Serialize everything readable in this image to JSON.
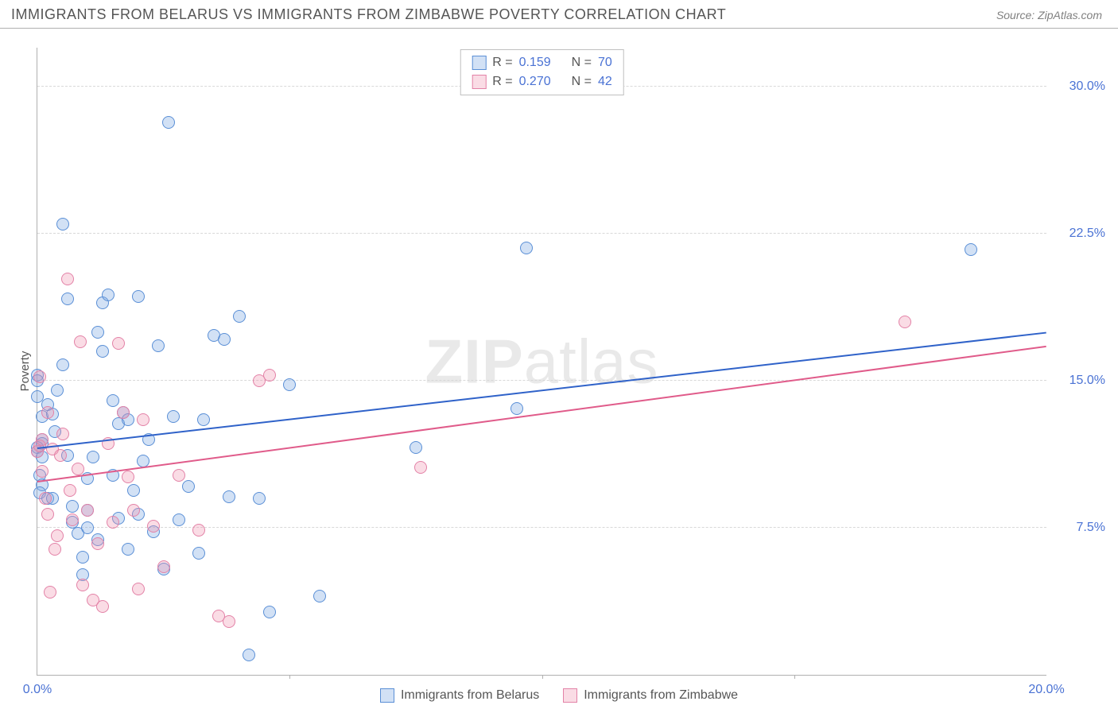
{
  "header": {
    "title": "IMMIGRANTS FROM BELARUS VS IMMIGRANTS FROM ZIMBABWE POVERTY CORRELATION CHART",
    "source": "Source: ZipAtlas.com"
  },
  "chart": {
    "type": "scatter",
    "ylabel": "Poverty",
    "watermark_bold": "ZIP",
    "watermark_rest": "atlas",
    "xlim": [
      0,
      20
    ],
    "ylim": [
      0,
      32
    ],
    "xticks": [
      {
        "value": 0,
        "label": "0.0%"
      },
      {
        "value": 20,
        "label": "20.0%"
      }
    ],
    "xtick_marks": [
      5,
      10,
      15
    ],
    "yticks": [
      {
        "value": 7.5,
        "label": "7.5%"
      },
      {
        "value": 15.0,
        "label": "15.0%"
      },
      {
        "value": 22.5,
        "label": "22.5%"
      },
      {
        "value": 30.0,
        "label": "30.0%"
      }
    ],
    "grid_color": "#d8d8d8",
    "axis_color": "#b0b0b0",
    "background_color": "#ffffff",
    "tick_label_color": "#4a72d4",
    "marker_radius": 8,
    "marker_border_width": 1.2,
    "series": [
      {
        "name": "Immigrants from Belarus",
        "fill": "rgba(126,169,226,0.35)",
        "stroke": "#5a8fd6",
        "line_color": "#2f62c9",
        "r_value": "0.159",
        "n_value": "70",
        "regression": {
          "x1": 0,
          "y1": 11.5,
          "x2": 20,
          "y2": 17.4
        },
        "points": [
          [
            0.0,
            15.3
          ],
          [
            0.0,
            15.0
          ],
          [
            0.0,
            14.2
          ],
          [
            0.1,
            13.2
          ],
          [
            0.1,
            12.0
          ],
          [
            0.1,
            11.8
          ],
          [
            0.0,
            11.6
          ],
          [
            0.0,
            11.4
          ],
          [
            0.1,
            11.1
          ],
          [
            0.05,
            10.2
          ],
          [
            0.1,
            9.7
          ],
          [
            0.05,
            9.3
          ],
          [
            0.2,
            9.0
          ],
          [
            0.3,
            9.0
          ],
          [
            0.2,
            13.8
          ],
          [
            0.3,
            13.3
          ],
          [
            0.35,
            12.4
          ],
          [
            0.4,
            14.5
          ],
          [
            0.5,
            15.8
          ],
          [
            0.5,
            23.0
          ],
          [
            0.6,
            19.2
          ],
          [
            0.6,
            11.2
          ],
          [
            0.7,
            8.6
          ],
          [
            0.7,
            7.8
          ],
          [
            0.8,
            7.2
          ],
          [
            0.9,
            5.1
          ],
          [
            0.9,
            6.0
          ],
          [
            1.0,
            7.5
          ],
          [
            1.0,
            8.4
          ],
          [
            1.0,
            10.0
          ],
          [
            1.1,
            11.1
          ],
          [
            1.2,
            17.5
          ],
          [
            1.2,
            6.9
          ],
          [
            1.3,
            19.0
          ],
          [
            1.3,
            16.5
          ],
          [
            1.4,
            19.4
          ],
          [
            1.5,
            14.0
          ],
          [
            1.5,
            10.2
          ],
          [
            1.6,
            12.8
          ],
          [
            1.6,
            8.0
          ],
          [
            1.7,
            13.4
          ],
          [
            1.8,
            13.0
          ],
          [
            1.8,
            6.4
          ],
          [
            1.9,
            9.4
          ],
          [
            2.0,
            19.3
          ],
          [
            2.0,
            8.2
          ],
          [
            2.1,
            10.9
          ],
          [
            2.2,
            12.0
          ],
          [
            2.3,
            7.3
          ],
          [
            2.4,
            16.8
          ],
          [
            2.5,
            5.4
          ],
          [
            2.6,
            28.2
          ],
          [
            2.7,
            13.2
          ],
          [
            2.8,
            7.9
          ],
          [
            3.0,
            9.6
          ],
          [
            3.2,
            6.2
          ],
          [
            3.3,
            13.0
          ],
          [
            3.5,
            17.3
          ],
          [
            3.7,
            17.1
          ],
          [
            3.8,
            9.1
          ],
          [
            4.0,
            18.3
          ],
          [
            4.2,
            1.0
          ],
          [
            4.4,
            9.0
          ],
          [
            4.6,
            3.2
          ],
          [
            5.0,
            14.8
          ],
          [
            5.6,
            4.0
          ],
          [
            7.5,
            11.6
          ],
          [
            9.5,
            13.6
          ],
          [
            18.5,
            21.7
          ],
          [
            9.7,
            21.8
          ]
        ]
      },
      {
        "name": "Immigrants from Zimbabwe",
        "fill": "rgba(238,145,175,0.32)",
        "stroke": "#e382a7",
        "line_color": "#e05b8a",
        "r_value": "0.270",
        "n_value": "42",
        "regression": {
          "x1": 0,
          "y1": 9.8,
          "x2": 20,
          "y2": 16.7
        },
        "points": [
          [
            0.0,
            11.4
          ],
          [
            0.05,
            11.7
          ],
          [
            0.05,
            15.2
          ],
          [
            0.1,
            12.0
          ],
          [
            0.1,
            10.4
          ],
          [
            0.15,
            9.0
          ],
          [
            0.2,
            8.2
          ],
          [
            0.2,
            13.4
          ],
          [
            0.25,
            4.2
          ],
          [
            0.3,
            11.5
          ],
          [
            0.35,
            6.4
          ],
          [
            0.4,
            7.1
          ],
          [
            0.45,
            11.2
          ],
          [
            0.5,
            12.3
          ],
          [
            0.6,
            20.2
          ],
          [
            0.65,
            9.4
          ],
          [
            0.7,
            7.9
          ],
          [
            0.8,
            10.5
          ],
          [
            0.85,
            17.0
          ],
          [
            0.9,
            4.6
          ],
          [
            1.0,
            8.4
          ],
          [
            1.1,
            3.8
          ],
          [
            1.2,
            6.7
          ],
          [
            1.3,
            3.5
          ],
          [
            1.4,
            11.8
          ],
          [
            1.5,
            7.8
          ],
          [
            1.6,
            16.9
          ],
          [
            1.7,
            13.4
          ],
          [
            1.8,
            10.1
          ],
          [
            1.9,
            8.4
          ],
          [
            2.0,
            4.4
          ],
          [
            2.1,
            13.0
          ],
          [
            2.3,
            7.6
          ],
          [
            2.5,
            5.5
          ],
          [
            2.8,
            10.2
          ],
          [
            3.2,
            7.4
          ],
          [
            3.8,
            2.7
          ],
          [
            4.4,
            15.0
          ],
          [
            4.6,
            15.3
          ],
          [
            7.6,
            10.6
          ],
          [
            17.2,
            18.0
          ],
          [
            3.6,
            3.0
          ]
        ]
      }
    ],
    "legend_top_labels": {
      "r": "R =",
      "n": "N ="
    }
  }
}
